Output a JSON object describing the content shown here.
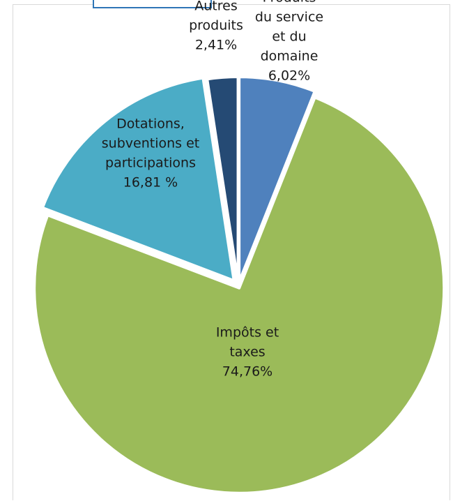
{
  "chart_data": {
    "type": "pie",
    "title": "",
    "categories": [
      "Produits du service et du domaine",
      "Impôts et taxes",
      "Dotations, subventions et participations",
      "Autres produits"
    ],
    "values": [
      6.02,
      74.76,
      16.81,
      2.41
    ],
    "colors": [
      "#4f81bd",
      "#9bbb59",
      "#4bacc6",
      "#254a74"
    ],
    "labels": [
      {
        "lines": [
          "Produits",
          "du service",
          "et du",
          "domaine",
          "6,02%"
        ]
      },
      {
        "lines": [
          "Impôts et",
          "taxes",
          "74,76%"
        ]
      },
      {
        "lines": [
          "Dotations,",
          "subventions et",
          "participations",
          "16,81 %"
        ]
      },
      {
        "lines": [
          "Autres",
          "produits",
          "2,41%"
        ]
      }
    ],
    "start_angle_deg": 0,
    "direction": "clockwise",
    "legend": "none",
    "grid": false
  }
}
